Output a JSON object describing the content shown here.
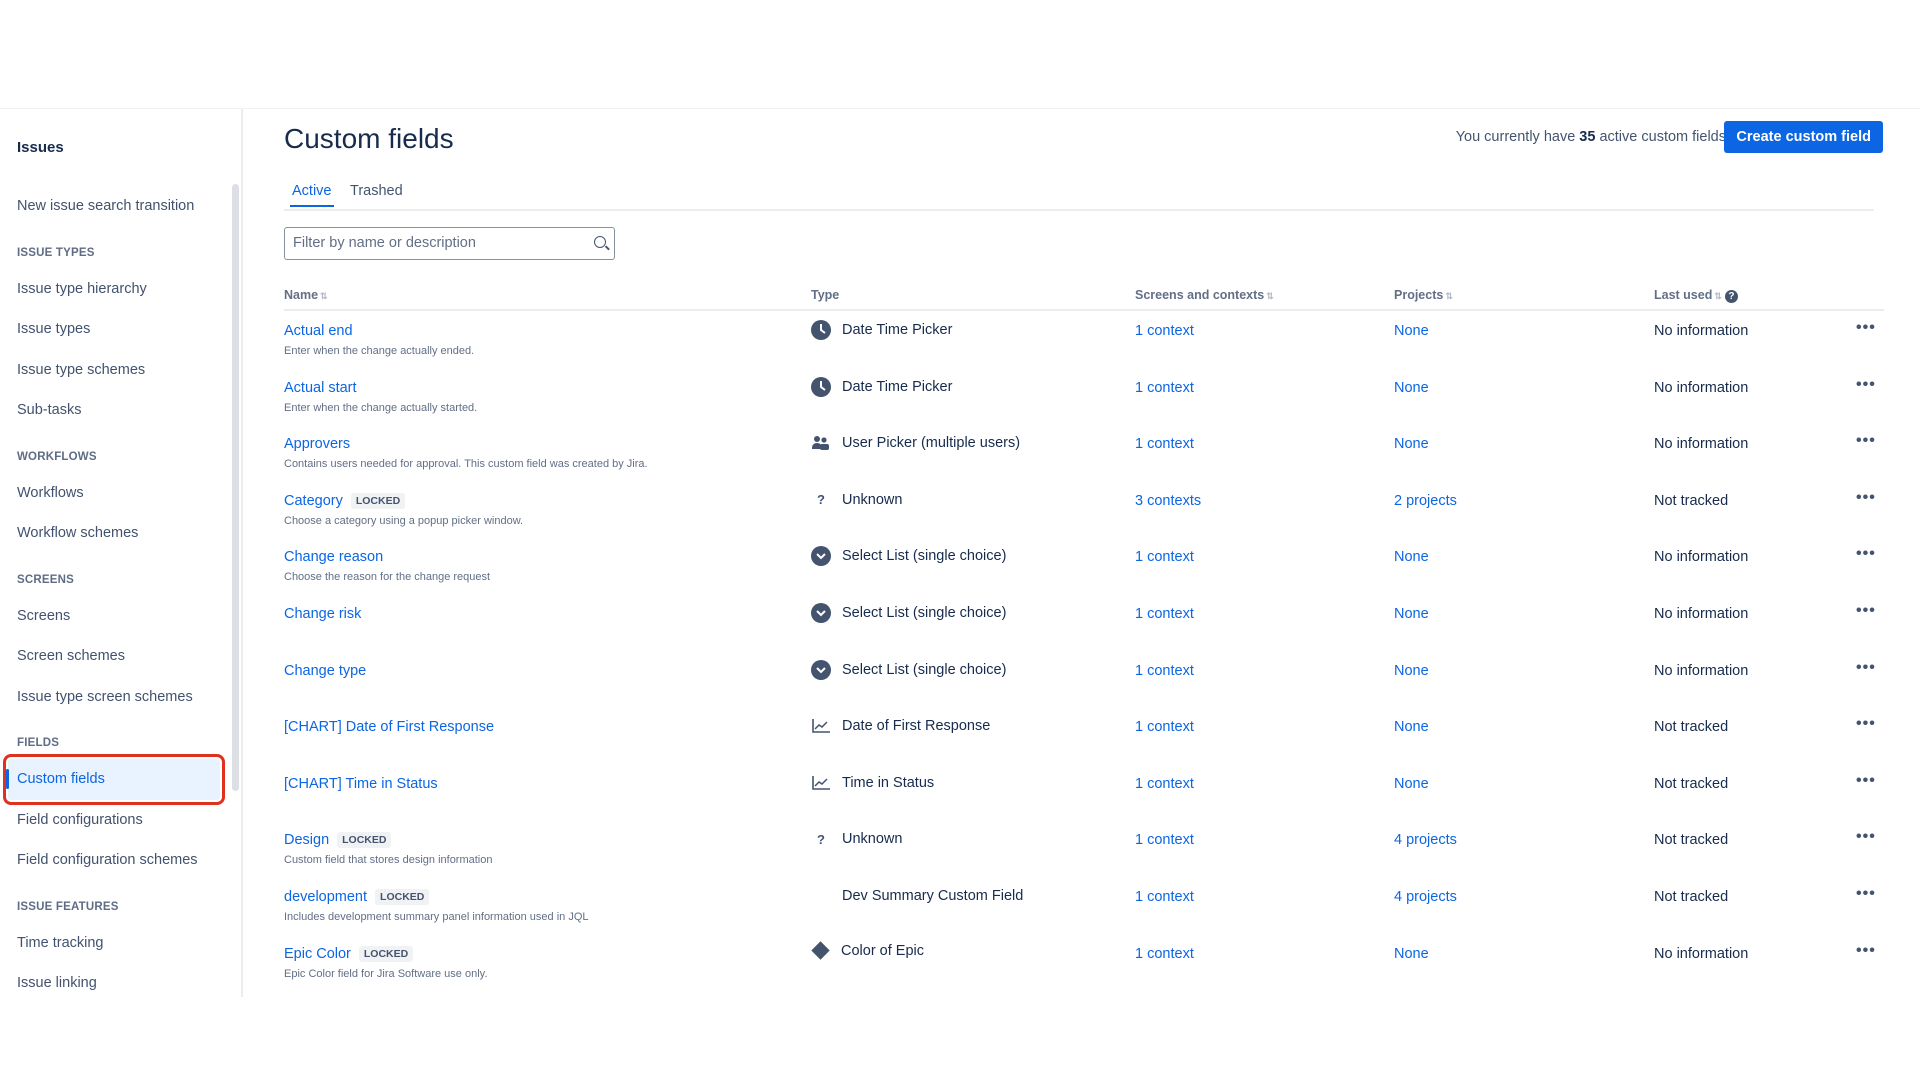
{
  "sidebar": {
    "title": "Issues",
    "items": [
      {
        "type": "item",
        "label": "New issue search transition"
      },
      {
        "type": "section",
        "label": "ISSUE TYPES"
      },
      {
        "type": "item",
        "label": "Issue type hierarchy"
      },
      {
        "type": "item",
        "label": "Issue types"
      },
      {
        "type": "item",
        "label": "Issue type schemes"
      },
      {
        "type": "item",
        "label": "Sub-tasks"
      },
      {
        "type": "section",
        "label": "WORKFLOWS"
      },
      {
        "type": "item",
        "label": "Workflows"
      },
      {
        "type": "item",
        "label": "Workflow schemes"
      },
      {
        "type": "section",
        "label": "SCREENS"
      },
      {
        "type": "item",
        "label": "Screens"
      },
      {
        "type": "item",
        "label": "Screen schemes"
      },
      {
        "type": "item",
        "label": "Issue type screen schemes"
      },
      {
        "type": "section",
        "label": "FIELDS"
      },
      {
        "type": "item",
        "label": "Custom fields",
        "selected": true
      },
      {
        "type": "item",
        "label": "Field configurations"
      },
      {
        "type": "item",
        "label": "Field configuration schemes"
      },
      {
        "type": "section",
        "label": "ISSUE FEATURES"
      },
      {
        "type": "item",
        "label": "Time tracking"
      },
      {
        "type": "item",
        "label": "Issue linking"
      }
    ]
  },
  "header": {
    "title": "Custom fields",
    "count_prefix": "You currently have",
    "count": "35",
    "count_suffix": "active custom fields",
    "create_label": "Create custom field"
  },
  "tabs": [
    {
      "label": "Active",
      "active": true
    },
    {
      "label": "Trashed"
    }
  ],
  "filter": {
    "placeholder": "Filter by name or description"
  },
  "columns": {
    "name": "Name",
    "type": "Type",
    "screens": "Screens and contexts",
    "projects": "Projects",
    "last_used": "Last used"
  },
  "colors": {
    "accent": "#0c66e4",
    "highlight": "#e0301e"
  },
  "rows": [
    {
      "name": "Actual end",
      "locked": false,
      "desc": "Enter when the change actually ended.",
      "type": "Date Time Picker",
      "icon": "clock-icon",
      "contexts": "1 context",
      "projects": "None",
      "last_used": "No information"
    },
    {
      "name": "Actual start",
      "locked": false,
      "desc": "Enter when the change actually started.",
      "type": "Date Time Picker",
      "icon": "clock-icon",
      "contexts": "1 context",
      "projects": "None",
      "last_used": "No information"
    },
    {
      "name": "Approvers",
      "locked": false,
      "desc": "Contains users needed for approval. This custom field was created by Jira.",
      "type": "User Picker (multiple users)",
      "icon": "users-icon",
      "contexts": "1 context",
      "projects": "None",
      "last_used": "No information"
    },
    {
      "name": "Category",
      "locked": true,
      "desc": "Choose a category using a popup picker window.",
      "type": "Unknown",
      "icon": "question-icon",
      "contexts": "3 contexts",
      "projects": "2 projects",
      "last_used": "Not tracked"
    },
    {
      "name": "Change reason",
      "locked": false,
      "desc": "Choose the reason for the change request",
      "type": "Select List (single choice)",
      "icon": "select-icon",
      "contexts": "1 context",
      "projects": "None",
      "last_used": "No information"
    },
    {
      "name": "Change risk",
      "locked": false,
      "desc": "",
      "type": "Select List (single choice)",
      "icon": "select-icon",
      "contexts": "1 context",
      "projects": "None",
      "last_used": "No information"
    },
    {
      "name": "Change type",
      "locked": false,
      "desc": "",
      "type": "Select List (single choice)",
      "icon": "select-icon",
      "contexts": "1 context",
      "projects": "None",
      "last_used": "No information"
    },
    {
      "name": "[CHART] Date of First Response",
      "locked": false,
      "desc": "",
      "type": "Date of First Response",
      "icon": "chart-icon",
      "contexts": "1 context",
      "projects": "None",
      "last_used": "Not tracked"
    },
    {
      "name": "[CHART] Time in Status",
      "locked": false,
      "desc": "",
      "type": "Time in Status",
      "icon": "chart-icon",
      "contexts": "1 context",
      "projects": "None",
      "last_used": "Not tracked"
    },
    {
      "name": "Design",
      "locked": true,
      "desc": "Custom field that stores design information",
      "type": "Unknown",
      "icon": "question-icon",
      "contexts": "1 context",
      "projects": "4 projects",
      "last_used": "Not tracked"
    },
    {
      "name": "development",
      "locked": true,
      "desc": "Includes development summary panel information used in JQL",
      "type": "Dev Summary Custom Field",
      "icon": "code-icon",
      "contexts": "1 context",
      "projects": "4 projects",
      "last_used": "Not tracked"
    },
    {
      "name": "Epic Color",
      "locked": true,
      "desc": "Epic Color field for Jira Software use only.",
      "type": "Color of Epic",
      "icon": "diamond-icon",
      "contexts": "1 context",
      "projects": "None",
      "last_used": "No information"
    }
  ],
  "locked_label": "LOCKED",
  "more_label": "•••"
}
